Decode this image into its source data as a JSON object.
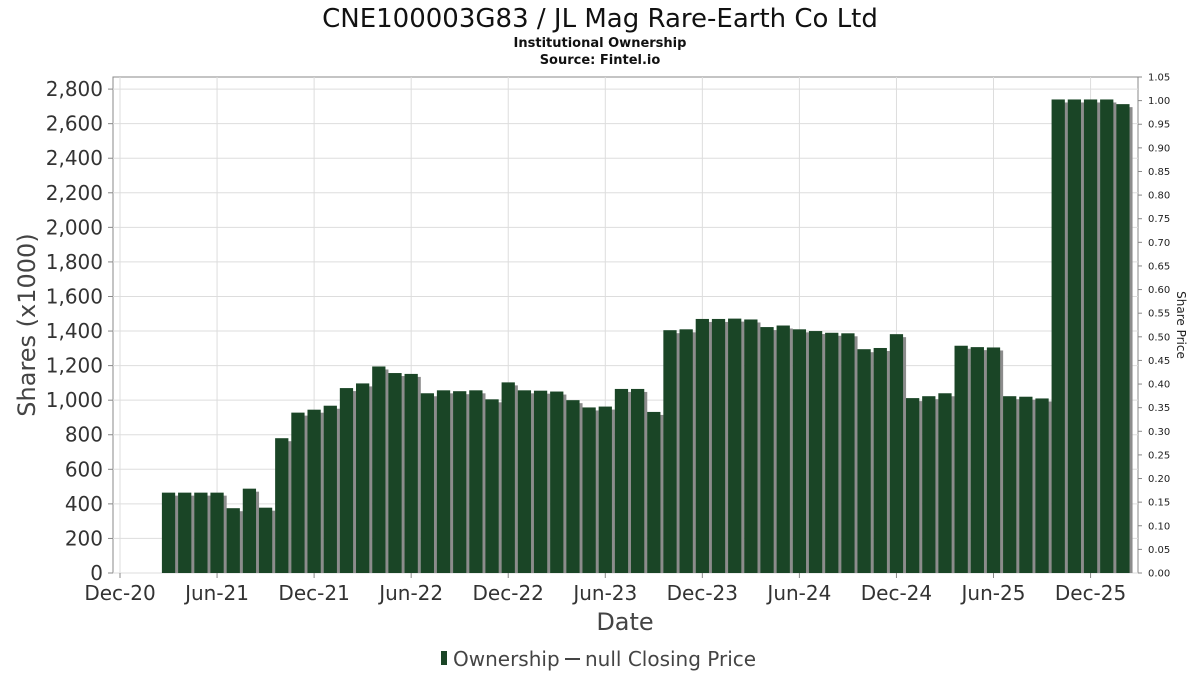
{
  "chart_data": {
    "type": "bar",
    "title": "CNE100003G83 / JL Mag Rare-Earth Co Ltd",
    "subtitle_lines": [
      "Institutional Ownership",
      "Source: Fintel.io"
    ],
    "xlabel": "Date",
    "ylabel": "Shares (x1000)",
    "y2label": "Share Price",
    "ylim": [
      0,
      2870
    ],
    "y2lim": [
      0,
      1.05
    ],
    "yticks": [
      0,
      200,
      400,
      600,
      800,
      1000,
      1200,
      1400,
      1600,
      1800,
      2000,
      2200,
      2400,
      2600,
      2800
    ],
    "ytick_labels": [
      "0",
      "200",
      "400",
      "600",
      "800",
      "1,000",
      "1,200",
      "1,400",
      "1,600",
      "1,800",
      "2,000",
      "2,200",
      "2,400",
      "2,600",
      "2,800"
    ],
    "y2ticks": [
      "0.00",
      "0.05",
      "0.10",
      "0.15",
      "0.20",
      "0.25",
      "0.30",
      "0.35",
      "0.40",
      "0.45",
      "0.50",
      "0.55",
      "0.60",
      "0.65",
      "0.70",
      "0.75",
      "0.80",
      "0.85",
      "0.90",
      "0.95",
      "1.00",
      "1.05"
    ],
    "x_domain": [
      0,
      62.5
    ],
    "xticks": [
      {
        "label": "Dec-20",
        "pos": 0
      },
      {
        "label": "Jun-21",
        "pos": 6
      },
      {
        "label": "Dec-21",
        "pos": 12
      },
      {
        "label": "Jun-22",
        "pos": 18
      },
      {
        "label": "Dec-22",
        "pos": 24
      },
      {
        "label": "Jun-23",
        "pos": 30
      },
      {
        "label": "Dec-23",
        "pos": 36
      },
      {
        "label": "Jun-24",
        "pos": 42
      },
      {
        "label": "Dec-24",
        "pos": 48
      },
      {
        "label": "Jun-25",
        "pos": 54
      },
      {
        "label": "Dec-25",
        "pos": 60
      }
    ],
    "bar_positions": [
      3,
      4,
      5,
      6,
      7,
      8,
      9,
      10,
      11,
      12,
      13,
      14,
      15,
      16,
      17,
      18,
      19,
      20,
      21,
      22,
      23,
      24,
      25,
      26,
      27,
      28,
      29,
      30,
      31,
      32,
      33,
      34,
      35,
      36,
      37,
      38,
      39,
      40,
      41,
      42,
      43,
      44,
      45,
      46,
      47,
      48,
      49,
      50,
      51,
      52,
      53,
      54,
      55,
      56,
      57,
      58,
      59,
      60,
      61,
      62
    ],
    "series": [
      {
        "name": "Ownership",
        "color": "#1a4526",
        "shadow": "#8c8c8c",
        "values": [
          465,
          465,
          465,
          465,
          375,
          488,
          378,
          780,
          928,
          945,
          968,
          1070,
          1097,
          1195,
          1157,
          1152,
          1040,
          1057,
          1052,
          1057,
          1005,
          1103,
          1057,
          1055,
          1050,
          1000,
          958,
          963,
          1065,
          1065,
          932,
          1405,
          1410,
          1470,
          1470,
          1472,
          1467,
          1423,
          1432,
          1410,
          1400,
          1390,
          1387,
          1295,
          1302,
          1382,
          1012,
          1023,
          1040,
          1315,
          1307,
          1305,
          1023,
          1020,
          1010,
          2740,
          2740,
          2740,
          2740,
          2713
        ]
      }
    ],
    "legend": [
      {
        "label": "Ownership",
        "kind": "bar",
        "color": "#1a4526"
      },
      {
        "label": "null Closing Price",
        "kind": "line",
        "color": "#444444"
      }
    ]
  }
}
